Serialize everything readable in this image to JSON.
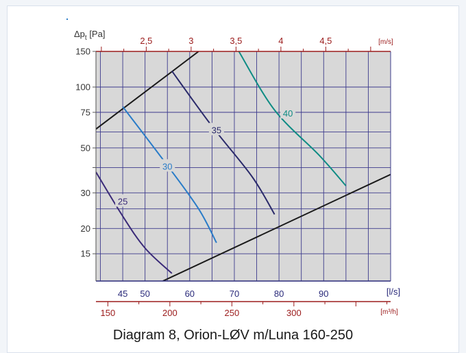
{
  "chart_data": {
    "type": "line",
    "title": "",
    "caption": "Diagram 8, Orion-LØV m/Luna 160-250",
    "ylabel_prefix": "Δp",
    "ylabel_sub": "t",
    "ylabel_unit": "[Pa]",
    "y_scale": "log",
    "ylim": [
      11,
      150
    ],
    "y_ticks": [
      "15",
      "20",
      "30",
      "50",
      "75",
      "100",
      "150"
    ],
    "grid": true,
    "plot_background": "#d8d8d8",
    "x_axis_ls": {
      "unit": "[l/s]",
      "lim": [
        39,
        105
      ],
      "ticks": [
        "45",
        "50",
        "60",
        "70",
        "80",
        "90"
      ]
    },
    "x_axis_m3h": {
      "unit": "[m³/h]",
      "ticks": [
        "150",
        "200",
        "250",
        "300"
      ]
    },
    "x_axis_velocity": {
      "unit": "[m/s]",
      "ticks": [
        "2,5",
        "3",
        "3,5",
        "4",
        "4,5"
      ]
    },
    "series": [
      {
        "name": "25",
        "color": "#3a2a78",
        "x": [
          39,
          45,
          50,
          56
        ],
        "y": [
          38,
          23,
          16,
          12
        ]
      },
      {
        "name": "30",
        "color": "#2a7cc8",
        "x": [
          45,
          55,
          62,
          66
        ],
        "y": [
          80,
          41,
          25,
          17
        ]
      },
      {
        "name": "35",
        "color": "#2a2a6a",
        "x": [
          56,
          65,
          74,
          79
        ],
        "y": [
          120,
          64,
          36,
          23.5
        ]
      },
      {
        "name": "40",
        "color": "#0f8c84",
        "x": [
          71,
          79,
          89,
          95
        ],
        "y": [
          150,
          77,
          46,
          32.5
        ]
      }
    ],
    "limit_lines": [
      {
        "color": "#1a1a1a",
        "x": [
          39,
          62
        ],
        "y": [
          62,
          150
        ]
      },
      {
        "color": "#1a1a1a",
        "x": [
          54,
          105
        ],
        "y": [
          11,
          37
        ]
      }
    ]
  }
}
